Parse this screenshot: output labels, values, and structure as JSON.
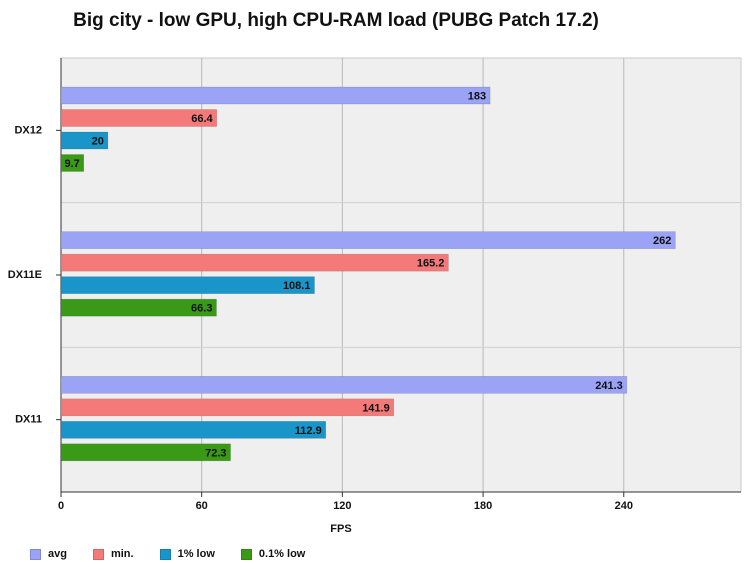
{
  "chart_data": {
    "type": "bar",
    "orientation": "horizontal",
    "title": "Big city - low GPU, high CPU-RAM load (PUBG Patch 17.2)",
    "xlabel": "FPS",
    "ylabel": "",
    "xlim": [
      0,
      290
    ],
    "xticks": [
      0,
      60,
      120,
      180,
      240
    ],
    "grid": true,
    "legend_position": "bottom",
    "categories": [
      "DX12",
      "DX11E",
      "DX11"
    ],
    "series": [
      {
        "name": "avg",
        "color": "#9aa3f5",
        "values": [
          183,
          262,
          241.3
        ],
        "labels": [
          "183",
          "262",
          "241.3"
        ]
      },
      {
        "name": "min.",
        "color": "#f47a7a",
        "values": [
          66.4,
          165.2,
          141.9
        ],
        "labels": [
          "66.4",
          "165.2",
          "141.9"
        ]
      },
      {
        "name": "1% low",
        "color": "#1a95c9",
        "values": [
          20,
          108.1,
          112.9
        ],
        "labels": [
          "20",
          "108.1",
          "112.9"
        ]
      },
      {
        "name": "0.1% low",
        "color": "#3a9a18",
        "values": [
          9.7,
          66.3,
          72.3
        ],
        "labels": [
          "9.7",
          "66.3",
          "72.3"
        ]
      }
    ]
  }
}
